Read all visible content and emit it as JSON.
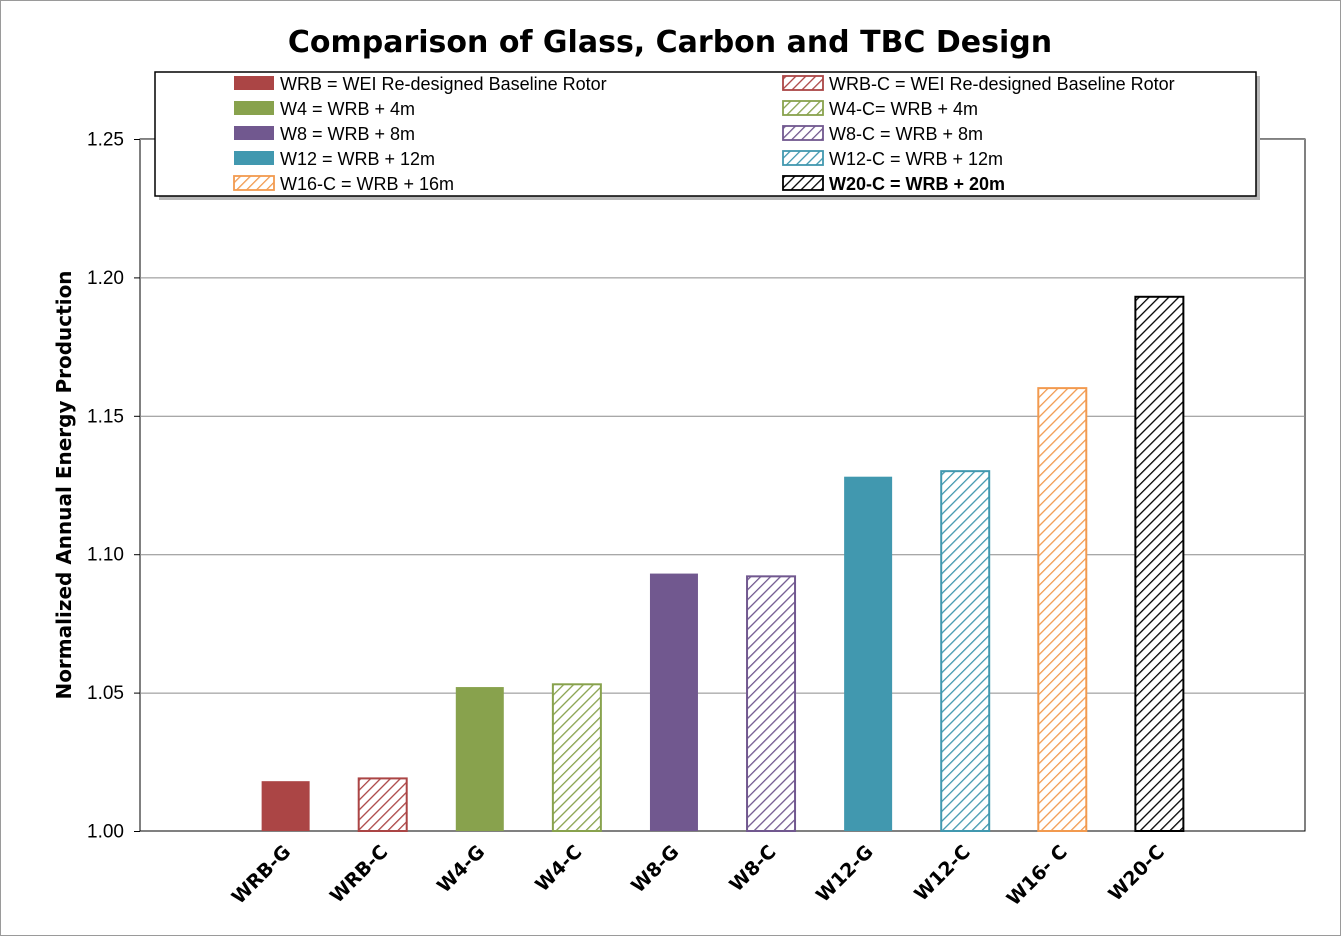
{
  "chart_data": {
    "type": "bar",
    "title": "Comparison of Glass, Carbon and TBC Design",
    "xlabel": "",
    "ylabel": "Normalized Annual Energy Production",
    "ylim": [
      1.0,
      1.25
    ],
    "yticks": [
      "1.00",
      "1.05",
      "1.10",
      "1.15",
      "1.20",
      "1.25"
    ],
    "grid": true,
    "legend_position": "top",
    "categories": [
      "WRB-G",
      "WRB-C",
      "W4-G",
      "W4-C",
      "W8-G",
      "W8-C",
      "W12-G",
      "W12-C",
      "W16- C",
      "W20-C"
    ],
    "values": [
      1.018,
      1.019,
      1.052,
      1.053,
      1.093,
      1.092,
      1.128,
      1.13,
      1.16,
      1.193
    ],
    "bar_colors": [
      "#ab4545",
      "#ab4545",
      "#88a24d",
      "#88a24d",
      "#71588f",
      "#71588f",
      "#4198af",
      "#4198af",
      "#f29a4f",
      "#000000"
    ],
    "bar_hatched": [
      false,
      true,
      false,
      true,
      false,
      true,
      false,
      true,
      true,
      true
    ],
    "legend": [
      {
        "label": "WRB = WEI Re-designed Baseline Rotor",
        "color": "#ab4545",
        "hatched": false,
        "bold": false
      },
      {
        "label": "WRB-C = WEI Re-designed Baseline Rotor",
        "color": "#ab4545",
        "hatched": true,
        "bold": false
      },
      {
        "label": "W4 = WRB + 4m",
        "color": "#88a24d",
        "hatched": false,
        "bold": false
      },
      {
        "label": "W4-C= WRB + 4m",
        "color": "#88a24d",
        "hatched": true,
        "bold": false
      },
      {
        "label": "W8 = WRB + 8m",
        "color": "#71588f",
        "hatched": false,
        "bold": false
      },
      {
        "label": "W8-C = WRB + 8m",
        "color": "#71588f",
        "hatched": true,
        "bold": false
      },
      {
        "label": "W12 = WRB + 12m",
        "color": "#4198af",
        "hatched": false,
        "bold": false
      },
      {
        "label": "W12-C = WRB + 12m",
        "color": "#4198af",
        "hatched": true,
        "bold": false
      },
      {
        "label": "W16-C = WRB + 16m",
        "color": "#f29a4f",
        "hatched": true,
        "bold": false
      },
      {
        "label": "W20-C = WRB + 20m",
        "color": "#000000",
        "hatched": true,
        "bold": true
      }
    ]
  }
}
